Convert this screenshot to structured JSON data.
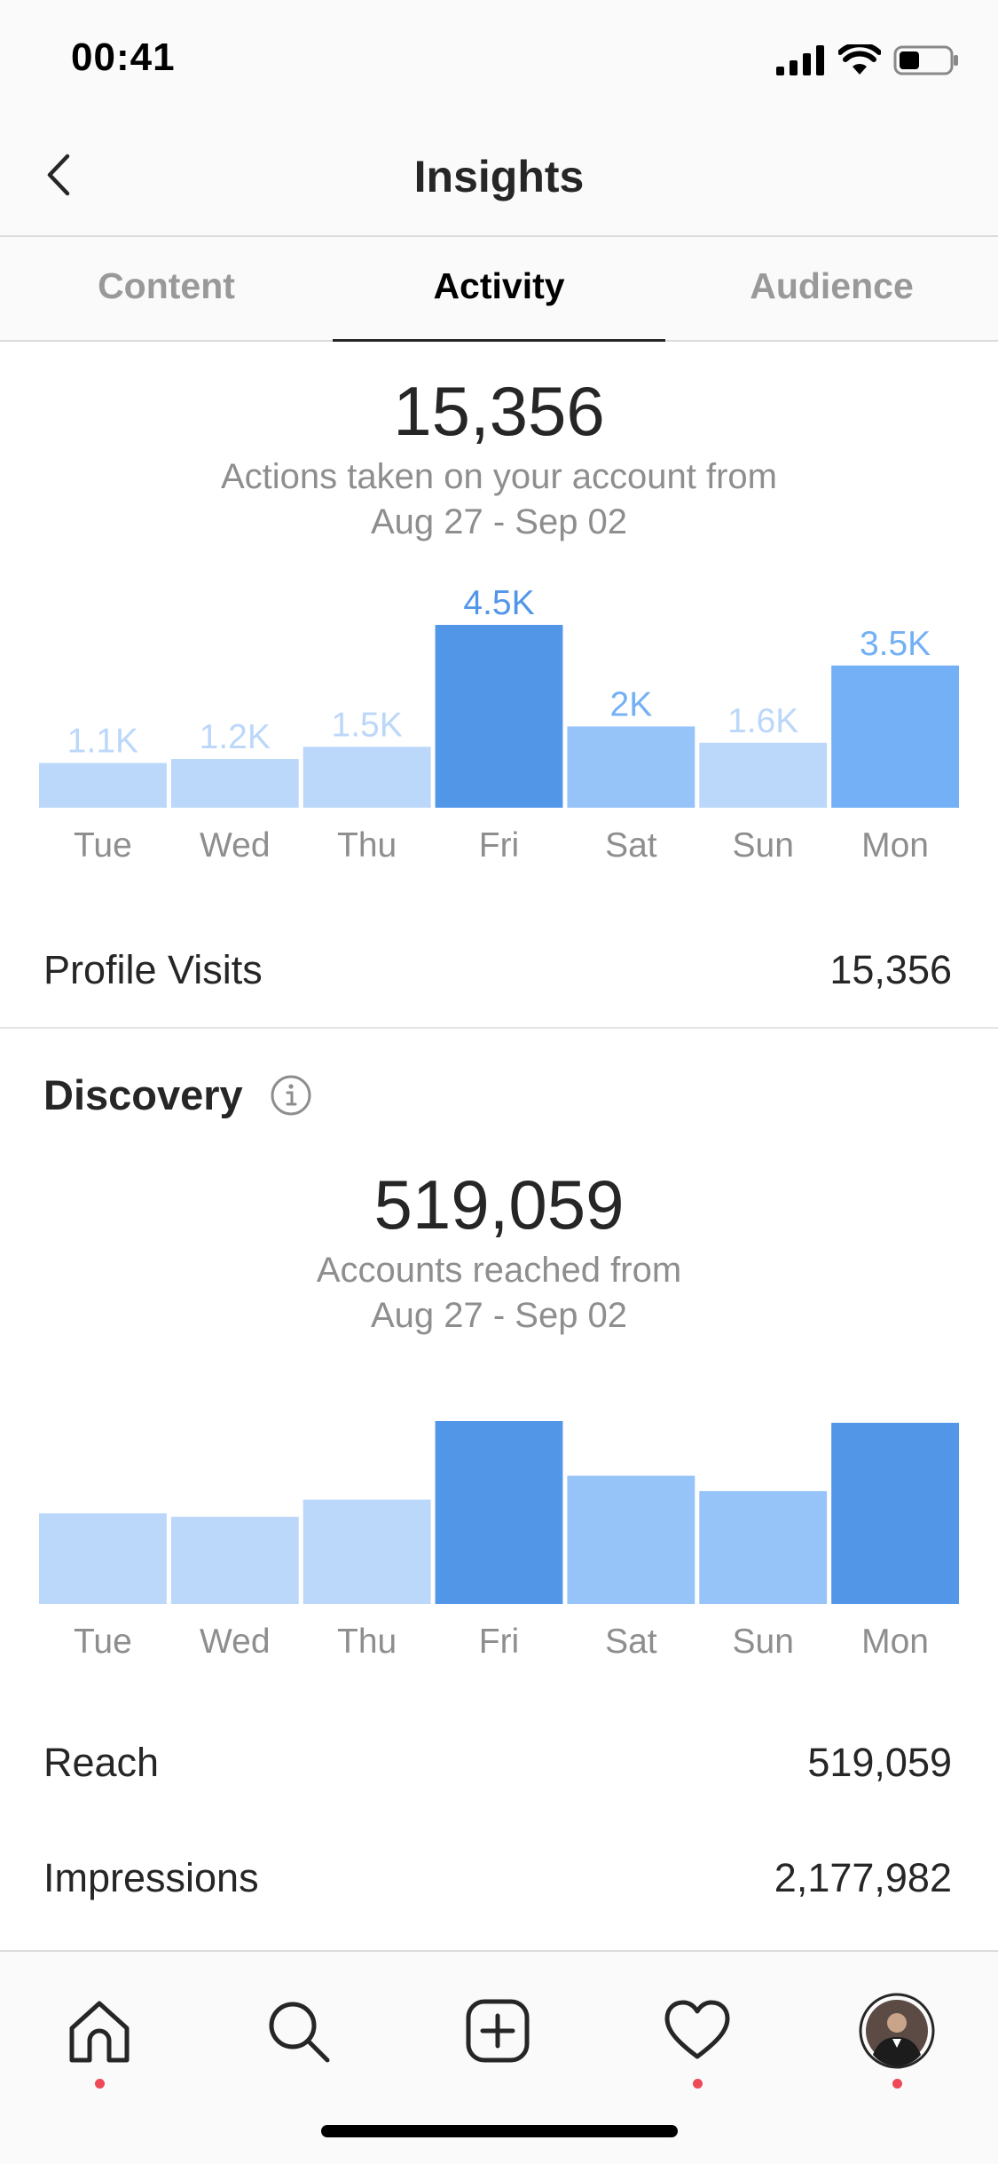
{
  "status_bar": {
    "time": "00:41"
  },
  "header": {
    "title": "Insights"
  },
  "tabs": [
    {
      "label": "Content"
    },
    {
      "label": "Activity"
    },
    {
      "label": "Audience"
    }
  ],
  "interactions": {
    "total": "15,356",
    "subtitle_line1": "Actions taken on your account from",
    "subtitle_line2": "Aug 27 - Sep 02",
    "profile_visits_label": "Profile Visits",
    "profile_visits_value": "15,356"
  },
  "discovery": {
    "title": "Discovery",
    "total": "519,059",
    "subtitle_line1": "Accounts reached from",
    "subtitle_line2": "Aug 27 - Sep 02",
    "reach_label": "Reach",
    "reach_value": "519,059",
    "impressions_label": "Impressions",
    "impressions_value": "2,177,982"
  },
  "colors": {
    "bar_light": "#bbd7fa",
    "bar_medium": "#96c3f8",
    "bar_strong": "#73b0f5",
    "bar_dark": "#5296e8",
    "tab_bar_dot": "#ed4956"
  },
  "chart_data": [
    {
      "type": "bar",
      "categories": [
        "Tue",
        "Wed",
        "Thu",
        "Fri",
        "Sat",
        "Sun",
        "Mon"
      ],
      "values": [
        1100,
        1200,
        1500,
        4500,
        2000,
        1600,
        3500
      ],
      "labels": [
        "1.1K",
        "1.2K",
        "1.5K",
        "4.5K",
        "2K",
        "1.6K",
        "3.5K"
      ],
      "shades": [
        "light",
        "light",
        "light",
        "dark",
        "medium",
        "light",
        "strong"
      ],
      "ylim": [
        0,
        4500
      ]
    },
    {
      "type": "bar",
      "categories": [
        "Tue",
        "Wed",
        "Thu",
        "Fri",
        "Sat",
        "Sun",
        "Mon"
      ],
      "values": [
        53000,
        51000,
        61000,
        107000,
        75000,
        66000,
        106000
      ],
      "shades": [
        "light",
        "light",
        "light",
        "dark",
        "medium",
        "medium",
        "dark"
      ],
      "ylim": [
        0,
        107000
      ]
    }
  ],
  "icons": {
    "back": "chevron-left-icon",
    "info": "info-icon",
    "home": "home-icon",
    "search": "search-icon",
    "new_post": "new-post-icon",
    "activity": "heart-icon",
    "profile": "avatar"
  }
}
